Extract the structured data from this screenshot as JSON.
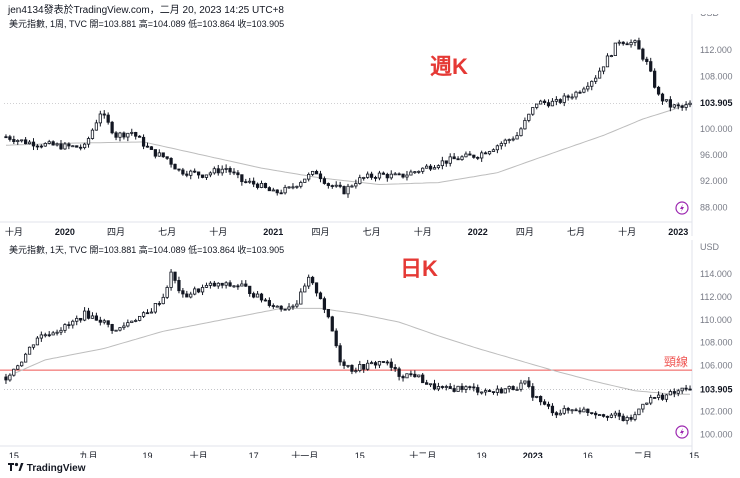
{
  "publish_line": "jen4134發表於TradingView.com，二月 20, 2023 14:25 UTC+8",
  "footer": {
    "brand": "TradingView",
    "logo": "tv-logo"
  },
  "colors": {
    "up": "#ffffff",
    "down": "#131722",
    "ma": "#bdbdbd",
    "neckline": "#ef5350",
    "label": "#e53935",
    "axis": "#787b86",
    "grid": "#e0e3eb",
    "badge": "#9c27b0"
  },
  "chart_data": [
    {
      "type": "candlestick",
      "title": "週K",
      "legend": "美元指數, 1周, TVC  開=103.881  高=104.089  低=103.864  收=103.905",
      "currency": "USD",
      "ylim": [
        87,
        116
      ],
      "yticks": [
        88,
        92,
        96,
        100,
        104,
        108,
        112
      ],
      "ytick_labels": [
        "88.000",
        "92.000",
        "96.000",
        "100.000",
        "104.000",
        "108.000",
        "112.000"
      ],
      "last_price_label": "103.905",
      "last_price": 103.905,
      "x_count": 175,
      "xtick_labels": [
        {
          "label": "十月",
          "i": 2
        },
        {
          "label": "2020",
          "i": 15,
          "bold": true
        },
        {
          "label": "四月",
          "i": 28
        },
        {
          "label": "七月",
          "i": 41
        },
        {
          "label": "十月",
          "i": 54
        },
        {
          "label": "2021",
          "i": 68,
          "bold": true
        },
        {
          "label": "四月",
          "i": 80
        },
        {
          "label": "七月",
          "i": 93
        },
        {
          "label": "十月",
          "i": 106
        },
        {
          "label": "2022",
          "i": 120,
          "bold": true
        },
        {
          "label": "四月",
          "i": 132
        },
        {
          "label": "七月",
          "i": 145
        },
        {
          "label": "十月",
          "i": 158
        },
        {
          "label": "2023",
          "i": 171,
          "bold": true
        }
      ],
      "anchors": [
        [
          0,
          98.8
        ],
        [
          5,
          98
        ],
        [
          10,
          97.6
        ],
        [
          15,
          97.3
        ],
        [
          20,
          97.2
        ],
        [
          24,
          102.5
        ],
        [
          28,
          99
        ],
        [
          32,
          99.5
        ],
        [
          37,
          96.5
        ],
        [
          41,
          95.5
        ],
        [
          44,
          93.6
        ],
        [
          50,
          93
        ],
        [
          56,
          94
        ],
        [
          60,
          92
        ],
        [
          64,
          91.5
        ],
        [
          68,
          90.2
        ],
        [
          72,
          90.8
        ],
        [
          76,
          92.5
        ],
        [
          79,
          93.4
        ],
        [
          82,
          91.5
        ],
        [
          86,
          90.5
        ],
        [
          89,
          92
        ],
        [
          91,
          92.5
        ],
        [
          95,
          93
        ],
        [
          100,
          92.7
        ],
        [
          105,
          93.7
        ],
        [
          110,
          94.8
        ],
        [
          115,
          95.5
        ],
        [
          120,
          96
        ],
        [
          125,
          97.5
        ],
        [
          130,
          99
        ],
        [
          135,
          104
        ],
        [
          140,
          104
        ],
        [
          145,
          105.5
        ],
        [
          150,
          108
        ],
        [
          156,
          113.5
        ],
        [
          160,
          113
        ],
        [
          163,
          110
        ],
        [
          166,
          105
        ],
        [
          169,
          103.5
        ],
        [
          172,
          103.2
        ],
        [
          175,
          103.9
        ]
      ],
      "ma_anchors": [
        [
          0,
          97.5
        ],
        [
          15,
          97.8
        ],
        [
          35,
          98
        ],
        [
          50,
          96
        ],
        [
          65,
          94
        ],
        [
          80,
          92.5
        ],
        [
          95,
          91.5
        ],
        [
          110,
          91.8
        ],
        [
          125,
          93.3
        ],
        [
          140,
          96.5
        ],
        [
          152,
          99
        ],
        [
          162,
          101.5
        ],
        [
          170,
          103
        ],
        [
          175,
          104.2
        ]
      ]
    },
    {
      "type": "candlestick",
      "title": "日K",
      "legend": "美元指數, 1天, TVC  開=103.881  高=104.089  低=103.864  收=103.905",
      "currency": "USD",
      "ylim": [
        99.5,
        115.4
      ],
      "yticks": [
        100,
        102,
        104,
        106,
        108,
        110,
        112,
        114
      ],
      "ytick_labels": [
        "100.000",
        "102.000",
        "104.000",
        "106.000",
        "108.000",
        "110.000",
        "112.000",
        "114.000"
      ],
      "last_price_label": "103.905",
      "last_price": 103.905,
      "neckline": {
        "value": 105.6,
        "label": "頸線"
      },
      "x_count": 175,
      "xtick_labels": [
        {
          "label": "15",
          "i": 2
        },
        {
          "label": "九月",
          "i": 21
        },
        {
          "label": "19",
          "i": 36
        },
        {
          "label": "十月",
          "i": 49
        },
        {
          "label": "17",
          "i": 63
        },
        {
          "label": "十一月",
          "i": 76
        },
        {
          "label": "15",
          "i": 90
        },
        {
          "label": "十二月",
          "i": 106
        },
        {
          "label": "19",
          "i": 121
        },
        {
          "label": "2023",
          "i": 134,
          "bold": true
        },
        {
          "label": "16",
          "i": 148
        },
        {
          "label": "二月",
          "i": 162
        },
        {
          "label": "15",
          "i": 175
        }
      ],
      "anchors": [
        [
          0,
          105
        ],
        [
          4,
          106.5
        ],
        [
          8,
          108.5
        ],
        [
          12,
          109
        ],
        [
          16,
          109.5
        ],
        [
          20,
          110.5
        ],
        [
          24,
          110
        ],
        [
          28,
          109
        ],
        [
          32,
          110
        ],
        [
          36,
          110.5
        ],
        [
          40,
          112
        ],
        [
          42,
          114
        ],
        [
          45,
          112
        ],
        [
          48,
          112.5
        ],
        [
          52,
          113
        ],
        [
          56,
          113
        ],
        [
          60,
          113
        ],
        [
          64,
          112
        ],
        [
          67,
          111.5
        ],
        [
          70,
          111
        ],
        [
          74,
          111.5
        ],
        [
          77,
          113.5
        ],
        [
          80,
          112
        ],
        [
          83,
          109
        ],
        [
          85,
          106.5
        ],
        [
          88,
          105.7
        ],
        [
          92,
          106
        ],
        [
          96,
          106.4
        ],
        [
          100,
          105.2
        ],
        [
          104,
          105.2
        ],
        [
          108,
          104.2
        ],
        [
          112,
          103.9
        ],
        [
          116,
          104.1
        ],
        [
          120,
          103.9
        ],
        [
          124,
          103.7
        ],
        [
          128,
          104
        ],
        [
          132,
          104.4
        ],
        [
          134,
          103.5
        ],
        [
          137,
          102.5
        ],
        [
          140,
          101.9
        ],
        [
          145,
          102.2
        ],
        [
          150,
          101.9
        ],
        [
          155,
          101.6
        ],
        [
          158,
          101.2
        ],
        [
          160,
          101.6
        ],
        [
          162,
          102.8
        ],
        [
          165,
          103.2
        ],
        [
          168,
          103.4
        ],
        [
          170,
          103.6
        ],
        [
          173,
          104
        ],
        [
          175,
          103.9
        ]
      ],
      "ma_anchors": [
        [
          0,
          105
        ],
        [
          10,
          106.5
        ],
        [
          25,
          107.5
        ],
        [
          40,
          109
        ],
        [
          55,
          110
        ],
        [
          70,
          111
        ],
        [
          80,
          111
        ],
        [
          90,
          110.5
        ],
        [
          100,
          109.8
        ],
        [
          110,
          108.6
        ],
        [
          120,
          107.5
        ],
        [
          130,
          106.5
        ],
        [
          140,
          105.5
        ],
        [
          150,
          104.6
        ],
        [
          160,
          103.8
        ],
        [
          170,
          103.5
        ],
        [
          175,
          103.5
        ]
      ]
    }
  ]
}
